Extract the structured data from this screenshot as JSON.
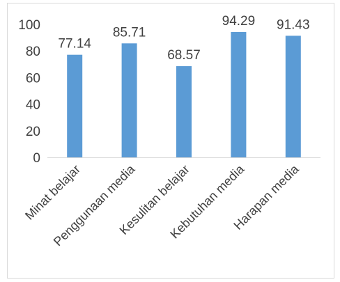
{
  "chart_data": {
    "type": "bar",
    "categories": [
      "Minat belajar",
      "Penggunaan media",
      "Kesulitan belajar",
      "Kebutuhan media",
      "Harapan media"
    ],
    "values": [
      77.14,
      85.71,
      68.57,
      94.29,
      91.43
    ],
    "value_labels": [
      "77.14",
      "85.71",
      "68.57",
      "94.29",
      "91.43"
    ],
    "title": "",
    "xlabel": "",
    "ylabel": "",
    "ylim": [
      0,
      100
    ],
    "yticks": [
      0,
      20,
      40,
      60,
      80,
      100
    ],
    "ytick_labels": [
      "0",
      "20",
      "40",
      "60",
      "80",
      "100"
    ],
    "grid": false,
    "legend": "none",
    "colors": {
      "bar": "#5b9bd5",
      "text": "#404040",
      "axis": "#d9d9d9"
    }
  }
}
